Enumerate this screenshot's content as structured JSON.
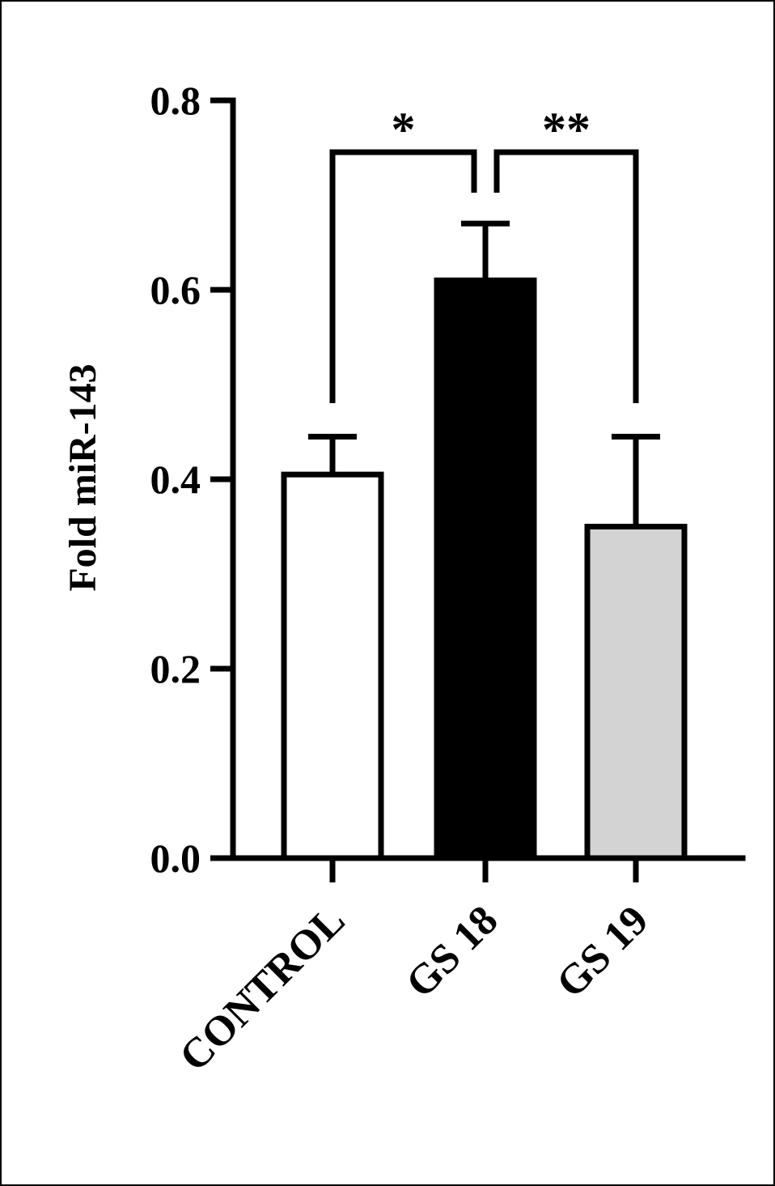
{
  "chart_data": {
    "type": "bar",
    "title": "",
    "xlabel": "",
    "ylabel": "Fold miR-143",
    "ylim": [
      0,
      0.8
    ],
    "yticks": [
      0.0,
      0.2,
      0.4,
      0.6,
      0.8
    ],
    "ytick_labels": [
      "0.0",
      "0.2",
      "0.4",
      "0.6",
      "0.8"
    ],
    "categories": [
      "CONTROL",
      "GS 18",
      "GS 19"
    ],
    "values": [
      0.405,
      0.61,
      0.35
    ],
    "errors": [
      0.04,
      0.06,
      0.095
    ],
    "bar_colors": [
      "#ffffff",
      "#000000",
      "#d3d3d3"
    ],
    "grid": false,
    "significance": [
      {
        "from": 0,
        "to": 1,
        "label": "*"
      },
      {
        "from": 1,
        "to": 2,
        "label": "**"
      }
    ]
  }
}
